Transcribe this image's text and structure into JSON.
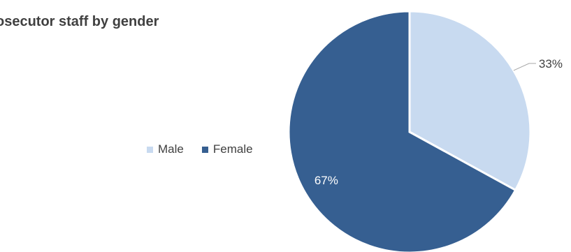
{
  "chart_data": {
    "type": "pie",
    "title": "osecutor staff by gender",
    "categories": [
      "Male",
      "Female"
    ],
    "values": [
      33,
      67
    ],
    "data_labels": [
      "33%",
      "67%"
    ],
    "colors": [
      "#c8daf0",
      "#365f91"
    ],
    "label_colors": [
      "#404040",
      "#ffffff"
    ],
    "legend_position": "left"
  }
}
